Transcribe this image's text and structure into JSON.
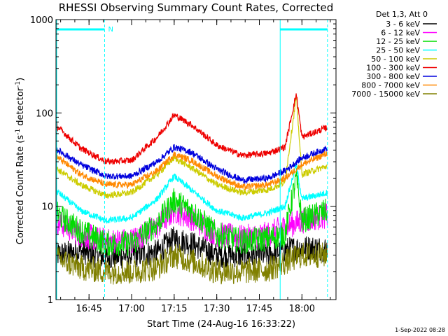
{
  "chart_data": {
    "type": "line",
    "title": "RHESSI Observing Summary Count Rates, Corrected",
    "xlabel": "Start Time (24-Aug-16 16:33:22)",
    "ylabel_main": "Corrected Count Rate (s",
    "ylabel_sup1": "-1",
    "ylabel_mid": " detector",
    "ylabel_sup2": "-1",
    "ylabel_end": ")",
    "y_scale": "log",
    "ylim": [
      1,
      1000
    ],
    "xlim": [
      "16:33:22",
      "18:12:00"
    ],
    "x_ticks": [
      "16:45",
      "17:00",
      "17:15",
      "17:30",
      "17:45",
      "18:00"
    ],
    "y_ticks": [
      "1",
      "10",
      "100",
      "1000"
    ],
    "legend_position": "right",
    "legend_header": "Det 1,3, Att 0",
    "grid": false,
    "annotation_n": "N",
    "timestamp": "1-Sep-2022 08:28",
    "series": [
      {
        "name": "3 - 6 keV",
        "color": "#000000",
        "x": [
          "16:33",
          "16:42",
          "16:51",
          "17:00",
          "17:09",
          "17:15",
          "17:21",
          "17:30",
          "17:39",
          "17:48",
          "17:54",
          "18:00",
          "18:09"
        ],
        "values": [
          3,
          3.3,
          2.8,
          3,
          3.2,
          4.5,
          4,
          3,
          3,
          3,
          3.4,
          3.6,
          3.5
        ]
      },
      {
        "name": "6 - 12 keV",
        "color": "#ff00ff",
        "x": [
          "16:33",
          "16:42",
          "16:51",
          "17:00",
          "17:09",
          "17:15",
          "17:21",
          "17:30",
          "17:39",
          "17:48",
          "17:54",
          "18:00",
          "18:09"
        ],
        "values": [
          7,
          5,
          4.2,
          4.3,
          6,
          9,
          7.5,
          5,
          4.6,
          5,
          6,
          7,
          8
        ]
      },
      {
        "name": "12 - 25 keV",
        "color": "#00dd00",
        "x": [
          "16:33",
          "16:42",
          "16:51",
          "17:00",
          "17:09",
          "17:15",
          "17:21",
          "17:30",
          "17:39",
          "17:48",
          "17:54",
          "17:58",
          "18:00",
          "18:09"
        ],
        "values": [
          8.5,
          5.5,
          4,
          4,
          6.5,
          11.5,
          9,
          5,
          4.2,
          4.5,
          5,
          20,
          7,
          9
        ]
      },
      {
        "name": "25 - 50 keV",
        "color": "#00ffff",
        "x": [
          "16:33",
          "16:42",
          "16:51",
          "17:00",
          "17:09",
          "17:15",
          "17:21",
          "17:30",
          "17:39",
          "17:48",
          "17:54",
          "17:58",
          "18:00",
          "18:09"
        ],
        "values": [
          15,
          9,
          7,
          7.5,
          12,
          21,
          15,
          9,
          7.5,
          8.5,
          10,
          28,
          12,
          14
        ]
      },
      {
        "name": "50 - 100 keV",
        "color": "#cccc00",
        "x": [
          "16:33",
          "16:42",
          "16:51",
          "17:00",
          "17:09",
          "17:15",
          "17:21",
          "17:30",
          "17:39",
          "17:48",
          "17:54",
          "17:58",
          "18:00",
          "18:09"
        ],
        "values": [
          26,
          17,
          13,
          14,
          22,
          33,
          26,
          17,
          14,
          15,
          18,
          150,
          22,
          27
        ]
      },
      {
        "name": "100 - 300 keV",
        "color": "#ee0000",
        "x": [
          "16:33",
          "16:42",
          "16:51",
          "17:00",
          "17:09",
          "17:15",
          "17:21",
          "17:30",
          "17:39",
          "17:48",
          "17:54",
          "17:58",
          "18:00",
          "18:09"
        ],
        "values": [
          75,
          42,
          30,
          31,
          55,
          95,
          75,
          45,
          35,
          37,
          43,
          160,
          55,
          70
        ]
      },
      {
        "name": "300 - 800 keV",
        "color": "#0000dd",
        "x": [
          "16:33",
          "16:42",
          "16:51",
          "17:00",
          "17:09",
          "17:15",
          "17:21",
          "17:30",
          "17:39",
          "17:48",
          "17:54",
          "18:00",
          "18:09"
        ],
        "values": [
          42,
          28,
          21,
          21,
          30,
          43,
          38,
          25,
          19,
          20,
          24,
          33,
          42
        ]
      },
      {
        "name": "800 - 7000 keV",
        "color": "#ff8800",
        "x": [
          "16:33",
          "16:42",
          "16:51",
          "17:00",
          "17:09",
          "17:15",
          "17:21",
          "17:30",
          "17:39",
          "17:48",
          "17:54",
          "18:00",
          "18:09"
        ],
        "values": [
          35,
          22,
          17,
          17,
          24,
          36,
          31,
          21,
          16,
          17,
          20,
          28,
          37
        ]
      },
      {
        "name": "7000 - 15000 keV",
        "color": "#808000",
        "x": [
          "16:33",
          "16:42",
          "16:51",
          "17:00",
          "17:09",
          "17:15",
          "17:21",
          "17:30",
          "17:39",
          "17:48",
          "17:54",
          "18:00",
          "18:09"
        ],
        "values": [
          2.8,
          2.2,
          2,
          2,
          2.2,
          3,
          2.6,
          2,
          2,
          2.1,
          2.5,
          3,
          3
        ]
      }
    ],
    "bars": [
      {
        "from": "16:33:22",
        "to": "16:50:30",
        "color": "#00ffff",
        "style": "solid"
      },
      {
        "from": "17:52:20",
        "to": "18:09:00",
        "color": "#00ffff",
        "style": "solid"
      }
    ],
    "night_boundaries": [
      {
        "time": "16:50:30",
        "style": "dashed"
      },
      {
        "time": "17:52:20",
        "style": "solid"
      },
      {
        "time": "18:09:00",
        "style": "dashed"
      }
    ]
  }
}
